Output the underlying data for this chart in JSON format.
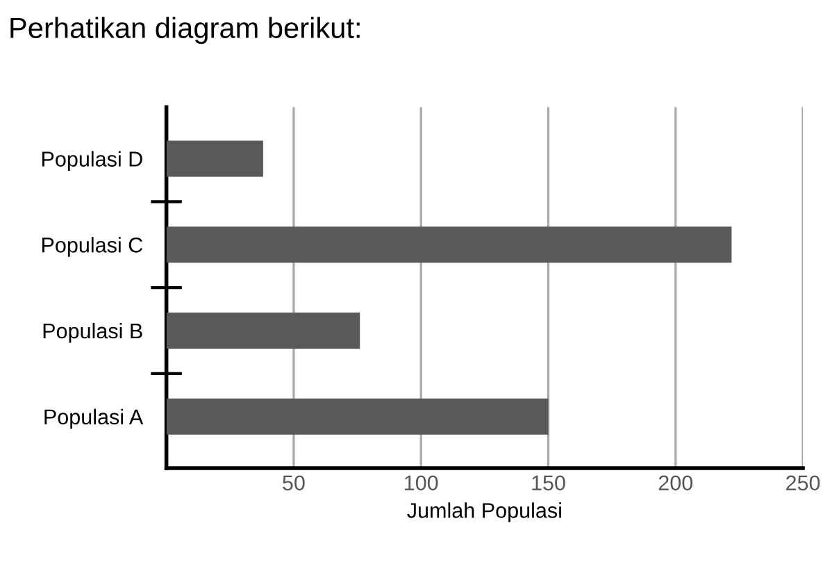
{
  "chart_data": {
    "type": "bar",
    "orientation": "horizontal",
    "title": "Perhatikan diagram berikut:",
    "categories": [
      "Populasi D",
      "Populasi C",
      "Populasi B",
      "Populasi A"
    ],
    "values": [
      38,
      222,
      76,
      150
    ],
    "color": "#595959",
    "xlabel": "Jumlah Populasi",
    "xlim": [
      0,
      250
    ],
    "xticks": [
      50,
      100,
      150,
      200,
      250
    ],
    "grid": "x"
  }
}
